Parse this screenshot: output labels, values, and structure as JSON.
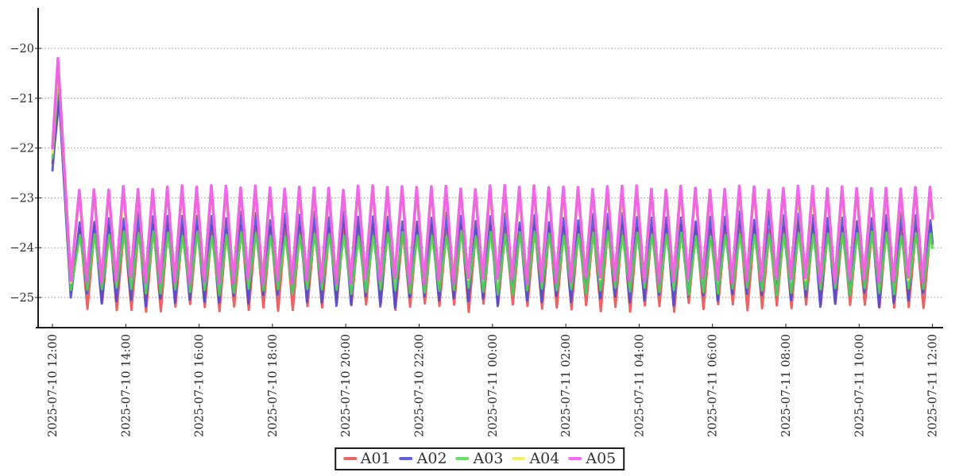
{
  "chart_data": {
    "type": "line",
    "title": "",
    "x_axis": {
      "label": "",
      "start": "2025-07-10 12:00",
      "end": "2025-07-11 12:00",
      "tick_interval_hours": 2,
      "tick_label_rotation_deg": 90,
      "tick_labels": [
        "2025-07-10 12:00",
        "2025-07-10 14:00",
        "2025-07-10 16:00",
        "2025-07-10 18:00",
        "2025-07-10 20:00",
        "2025-07-10 22:00",
        "2025-07-11 00:00",
        "2025-07-11 02:00",
        "2025-07-11 04:00",
        "2025-07-11 06:00",
        "2025-07-11 08:00",
        "2025-07-11 10:00",
        "2025-07-11 12:00"
      ]
    },
    "y_axis": {
      "label": "",
      "tick_labels": [
        "−20",
        "−21",
        "−22",
        "−23",
        "−24",
        "−25"
      ],
      "tick_values": [
        -20,
        -21,
        -22,
        -23,
        -24,
        -25
      ],
      "range_top": -19.2,
      "range_bottom": -25.6,
      "gridlines": "dotted"
    },
    "waveform": {
      "description": "All five channels start near -22 at 2025-07-10 12:00, spike up to about -20.2 within ~10 minutes, fall to about -24.8 by ~12:30, then oscillate with a steady ~24-minute sawtooth for the remaining 24 hours. A05 rides highest (peaks ~-22.8), A01 dips lowest (troughs ~-25.2).",
      "period_minutes": 24,
      "first_peak_minute": 44,
      "post_spike_trough_minute": 30,
      "total_minutes": 1440
    },
    "series": [
      {
        "name": "A01",
        "color": "#e84c4c",
        "line_width": 3.0,
        "start_value": -22.3,
        "spike_peak": -21.05,
        "spike_peak_minute": 11.5,
        "post_spike_trough": -24.9,
        "osc_peak": -23.58,
        "osc_trough": -25.2,
        "peak_jitter": 0.06,
        "trough_jitter": 0.09,
        "phase_minutes": 1.3,
        "seed": 1
      },
      {
        "name": "A02",
        "color": "#4848d2",
        "line_width": 3.0,
        "start_value": -22.45,
        "spike_peak": -20.9,
        "spike_peak_minute": 10.5,
        "post_spike_trough": -25.0,
        "osc_peak": -23.38,
        "osc_trough": -25.05,
        "peak_jitter": 0.12,
        "trough_jitter": 0.16,
        "phase_minutes": 0.6,
        "seed": 2
      },
      {
        "name": "A03",
        "color": "#4fd84f",
        "line_width": 3.0,
        "start_value": -22.2,
        "spike_peak": -20.5,
        "spike_peak_minute": 10.0,
        "post_spike_trough": -24.85,
        "osc_peak": -23.72,
        "osc_trough": -24.88,
        "peak_jitter": 0.06,
        "trough_jitter": 0.08,
        "phase_minutes": 1.0,
        "seed": 3
      },
      {
        "name": "A04",
        "color": "#efef52",
        "line_width": 3.0,
        "start_value": -22.1,
        "spike_peak": -20.35,
        "spike_peak_minute": 9.5,
        "post_spike_trough": -24.7,
        "osc_peak": -22.93,
        "osc_trough": -24.6,
        "peak_jitter": 0.04,
        "trough_jitter": 0.06,
        "phase_minutes": 0.2,
        "seed": 4
      },
      {
        "name": "A05",
        "color": "#ee52ee",
        "line_width": 3.6,
        "start_value": -22.0,
        "spike_peak": -20.2,
        "spike_peak_minute": 9.0,
        "post_spike_trough": -24.66,
        "osc_peak": -22.8,
        "osc_trough": -24.66,
        "peak_jitter": 0.05,
        "trough_jitter": 0.07,
        "phase_minutes": 0.0,
        "seed": 5
      }
    ],
    "legend": {
      "position": "bottom-center",
      "entries": [
        "A01",
        "A02",
        "A03",
        "A04",
        "A05"
      ]
    }
  }
}
